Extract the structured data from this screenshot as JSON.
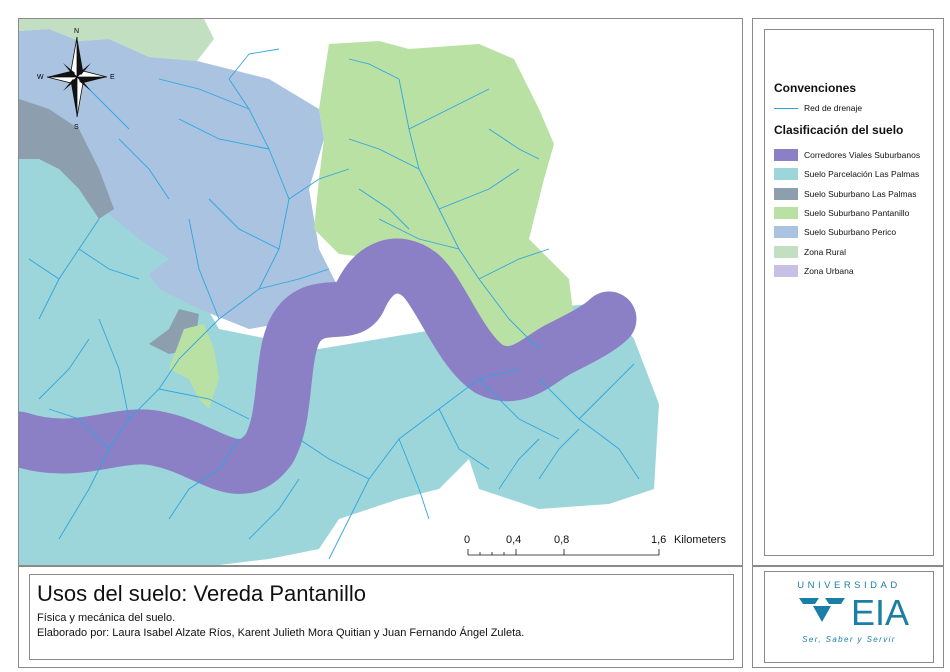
{
  "map": {
    "north_arrow": {
      "n": "N",
      "s": "S",
      "e": "E",
      "w": "W"
    },
    "scale_bar": {
      "ticks": [
        "0",
        "0,4",
        "0,8",
        "1,6"
      ],
      "unit": "Kilometers"
    }
  },
  "legend": {
    "heading": "Convenciones",
    "line_item": {
      "label": "Red de drenaje",
      "color": "#2ea5e0"
    },
    "classification_heading": "Clasificación del suelo",
    "items": [
      {
        "label": "Corredores Viales Suburbanos",
        "color": "#8b7fc6"
      },
      {
        "label": "Suelo Parcelación Las Palmas",
        "color": "#9dd6da"
      },
      {
        "label": "Suelo Suburbano Las Palmas",
        "color": "#8d9fae"
      },
      {
        "label": "Suelo Suburbano Pantanillo",
        "color": "#b9e1a4"
      },
      {
        "label": "Suelo Suburbano Perico",
        "color": "#a9c3e0"
      },
      {
        "label": "Zona Rural",
        "color": "#c3dfc1"
      },
      {
        "label": "Zona Urbana",
        "color": "#c7bfe6"
      }
    ]
  },
  "title_block": {
    "title": "Usos del suelo: Vereda Pantanillo",
    "subtitle": "Física y mecánica del suelo.",
    "authors": "Elaborado por: Laura Isabel Alzate Ríos, Karent Julieth Mora Quitian y Juan Fernando Ángel Zuleta."
  },
  "logo": {
    "university": "UNIVERSIDAD",
    "name": "EIA",
    "slogan": "Ser, Saber y Servir",
    "color": "#1a7fa6"
  }
}
